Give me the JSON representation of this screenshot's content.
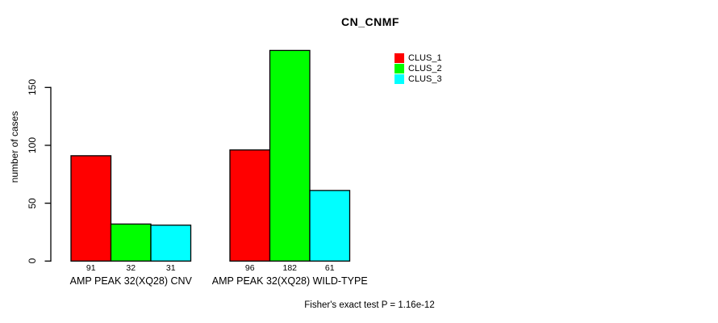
{
  "chart_data": {
    "type": "bar",
    "title": "CN_CNMF",
    "ylabel": "number of cases",
    "xlabel": "",
    "categories": [
      "AMP PEAK 32(XQ28) CNV",
      "AMP PEAK 32(XQ28) WILD-TYPE"
    ],
    "series": [
      {
        "name": "CLUS_1",
        "color": "#FF0000",
        "values": [
          91,
          96
        ]
      },
      {
        "name": "CLUS_2",
        "color": "#00FF00",
        "values": [
          32,
          182
        ]
      },
      {
        "name": "CLUS_3",
        "color": "#00FFFF",
        "values": [
          31,
          61
        ]
      }
    ],
    "bar_value_labels": [
      [
        "91",
        "32",
        "31"
      ],
      [
        "96",
        "182",
        "61"
      ]
    ],
    "yticks": [
      0,
      50,
      100,
      150
    ],
    "ylim": [
      0,
      182
    ],
    "grid": false,
    "legend_position": "top-right",
    "legend_entries": [
      "CLUS_1",
      "CLUS_2",
      "CLUS_3"
    ],
    "annotation": "Fisher's exact test P = 1.16e-12",
    "axis_color": "#000000",
    "bar_border_color": "#000000"
  }
}
